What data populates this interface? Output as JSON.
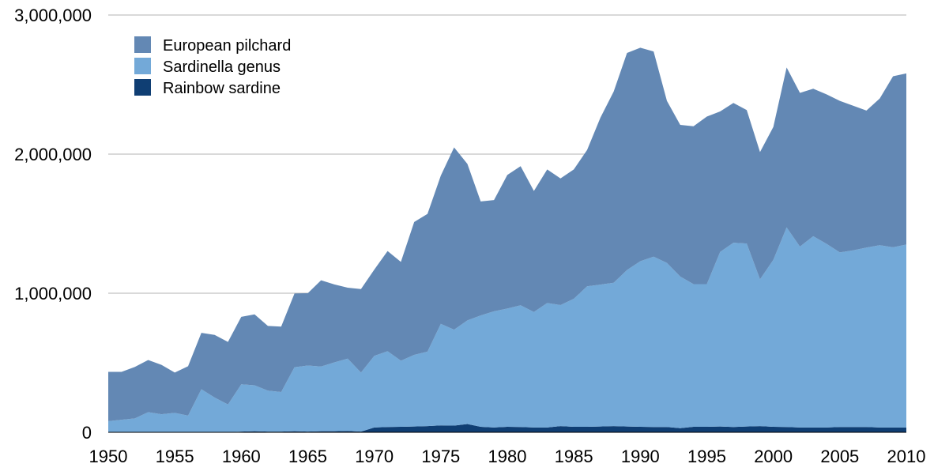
{
  "chart_data": {
    "type": "area",
    "stacked": true,
    "title": "",
    "xlabel": "",
    "ylabel": "",
    "xlim": [
      1950,
      2010
    ],
    "ylim": [
      0,
      3000000
    ],
    "grid": true,
    "legend_position": "top-left",
    "x_ticks": [
      "1950",
      "1955",
      "1960",
      "1965",
      "1970",
      "1975",
      "1980",
      "1985",
      "1990",
      "1995",
      "2000",
      "2005",
      "2010"
    ],
    "y_ticks": [
      "0",
      "1,000,000",
      "2,000,000",
      "3,000,000"
    ],
    "x": [
      1950,
      1951,
      1952,
      1953,
      1954,
      1955,
      1956,
      1957,
      1958,
      1959,
      1960,
      1961,
      1962,
      1963,
      1964,
      1965,
      1966,
      1967,
      1968,
      1969,
      1970,
      1971,
      1972,
      1973,
      1974,
      1975,
      1976,
      1977,
      1978,
      1979,
      1980,
      1981,
      1982,
      1983,
      1984,
      1985,
      1986,
      1987,
      1988,
      1989,
      1990,
      1991,
      1992,
      1993,
      1994,
      1995,
      1996,
      1997,
      1998,
      1999,
      2000,
      2001,
      2002,
      2003,
      2004,
      2005,
      2006,
      2007,
      2008,
      2009,
      2010
    ],
    "series": [
      {
        "name": "Rainbow sardine",
        "color": "#0f3e73",
        "values": [
          0,
          0,
          0,
          0,
          0,
          0,
          0,
          0,
          0,
          0,
          5000,
          8000,
          5000,
          5000,
          8000,
          5000,
          8000,
          8000,
          10000,
          5000,
          35000,
          38000,
          40000,
          42000,
          45000,
          50000,
          48000,
          60000,
          40000,
          35000,
          40000,
          38000,
          35000,
          35000,
          45000,
          40000,
          40000,
          42000,
          45000,
          42000,
          40000,
          38000,
          38000,
          30000,
          40000,
          40000,
          42000,
          38000,
          42000,
          45000,
          40000,
          38000,
          35000,
          35000,
          35000,
          38000,
          38000,
          38000,
          35000,
          35000,
          35000
        ]
      },
      {
        "name": "Sardinella genus",
        "color": "#73a9d8",
        "values": [
          80000,
          90000,
          100000,
          145000,
          130000,
          140000,
          120000,
          310000,
          250000,
          200000,
          340000,
          330000,
          295000,
          285000,
          460000,
          475000,
          465000,
          495000,
          520000,
          425000,
          515000,
          545000,
          475000,
          515000,
          535000,
          730000,
          690000,
          745000,
          800000,
          835000,
          850000,
          875000,
          830000,
          895000,
          870000,
          920000,
          1010000,
          1020000,
          1030000,
          1125000,
          1190000,
          1225000,
          1180000,
          1090000,
          1025000,
          1025000,
          1255000,
          1325000,
          1315000,
          1055000,
          1200000,
          1435000,
          1300000,
          1375000,
          1320000,
          1255000,
          1270000,
          1290000,
          1310000,
          1295000,
          1315000
        ]
      },
      {
        "name": "European pilchard",
        "color": "#6388b4",
        "values": [
          355000,
          345000,
          370000,
          375000,
          355000,
          290000,
          355000,
          405000,
          450000,
          450000,
          485000,
          510000,
          465000,
          470000,
          530000,
          520000,
          620000,
          560000,
          510000,
          600000,
          620000,
          720000,
          710000,
          955000,
          990000,
          1065000,
          1310000,
          1125000,
          820000,
          800000,
          960000,
          1000000,
          870000,
          960000,
          910000,
          930000,
          980000,
          1200000,
          1375000,
          1560000,
          1535000,
          1475000,
          1165000,
          1090000,
          1135000,
          1205000,
          1010000,
          1005000,
          960000,
          915000,
          955000,
          1150000,
          1105000,
          1060000,
          1075000,
          1090000,
          1040000,
          985000,
          1055000,
          1230000,
          1230000
        ]
      }
    ],
    "legend": [
      "European pilchard",
      "Sardinella genus",
      "Rainbow sardine"
    ]
  }
}
